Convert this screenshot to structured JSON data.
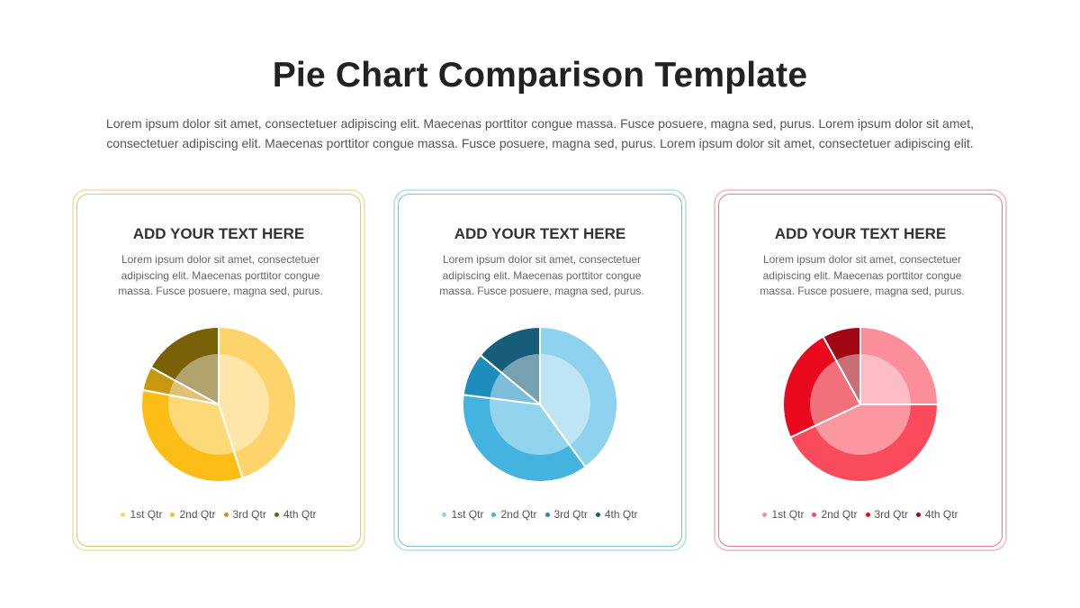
{
  "page": {
    "title": "Pie Chart Comparison Template",
    "subtitle": "Lorem ipsum dolor sit amet, consectetuer adipiscing elit. Maecenas porttitor congue massa. Fusce posuere, magna sed, purus. Lorem ipsum dolor sit amet, consectetuer adipiscing elit. Maecenas porttitor congue massa. Fusce posuere, magna sed, purus. Lorem ipsum dolor sit amet, consectetuer adipiscing elit."
  },
  "cards": [
    {
      "heading": "ADD YOUR TEXT HERE",
      "body": "Lorem ipsum dolor sit amet, consectetuer adipiscing elit. Maecenas porttitor congue massa. Fusce posuere, magna sed, purus."
    },
    {
      "heading": "ADD YOUR TEXT HERE",
      "body": "Lorem ipsum dolor sit amet, consectetuer adipiscing elit. Maecenas porttitor congue massa. Fusce posuere, magna sed, purus."
    },
    {
      "heading": "ADD YOUR TEXT HERE",
      "body": "Lorem ipsum dolor sit amet, consectetuer adipiscing elit. Maecenas porttitor congue massa. Fusce posuere, magna sed, purus."
    }
  ],
  "chart_data": [
    {
      "type": "pie",
      "categories": [
        "1st Qtr",
        "2nd Qtr",
        "3rd Qtr",
        "4th Qtr"
      ],
      "values": [
        45,
        33,
        5,
        17
      ],
      "colors": [
        "#fdd46b",
        "#fbbd16",
        "#c9970f",
        "#7a6006"
      ]
    },
    {
      "type": "pie",
      "categories": [
        "1st Qtr",
        "2nd Qtr",
        "3rd Qtr",
        "4th Qtr"
      ],
      "values": [
        40,
        37,
        9,
        14
      ],
      "colors": [
        "#8fd2ee",
        "#44b3e0",
        "#1e8dbe",
        "#155d78"
      ]
    },
    {
      "type": "pie",
      "categories": [
        "1st Qtr",
        "2nd Qtr",
        "3rd Qtr",
        "4th Qtr"
      ],
      "values": [
        25,
        43,
        24,
        8
      ],
      "colors": [
        "#fb8e9a",
        "#fa4b5c",
        "#e80a1c",
        "#a00712"
      ]
    }
  ]
}
